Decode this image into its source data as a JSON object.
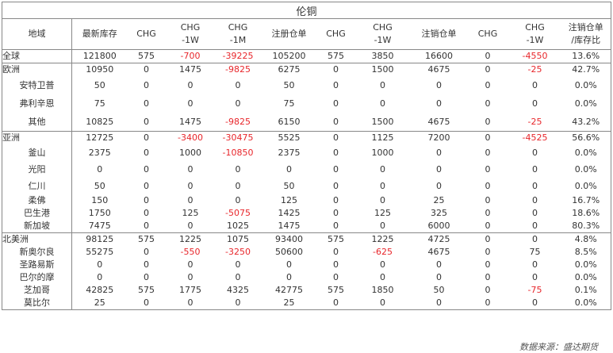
{
  "title": "伦铜",
  "headers": [
    "地域",
    "最新库存",
    "CHG",
    "CHG\n-1W",
    "CHG\n-1M",
    "注册仓单",
    "CHG",
    "CHG\n-1W",
    "注销仓单",
    "CHG",
    "CHG\n-1W",
    "注销仓单\n/库存比"
  ],
  "rows": [
    {
      "region": "全球",
      "level": 0,
      "cells": [
        "121800",
        "575",
        "-700",
        "-39225",
        "105200",
        "575",
        "3850",
        "16600",
        "0",
        "-4550",
        "13.6%"
      ],
      "red": [
        2,
        3,
        9
      ]
    },
    {
      "region": "欧洲",
      "level": 0,
      "cells": [
        "10950",
        "0",
        "1475",
        "-9825",
        "6275",
        "0",
        "1500",
        "4675",
        "0",
        "-25",
        "42.7%"
      ],
      "red": [
        3,
        9
      ]
    },
    {
      "region": "安特卫普",
      "level": 1,
      "cells": [
        "50",
        "0",
        "0",
        "0",
        "50",
        "0",
        "0",
        "0",
        "0",
        "0",
        "0.0%"
      ],
      "red": []
    },
    {
      "region": "弗利辛恩",
      "level": 1,
      "cells": [
        "75",
        "0",
        "0",
        "0",
        "75",
        "0",
        "0",
        "0",
        "0",
        "0",
        "0.0%"
      ],
      "red": []
    },
    {
      "region": "其他",
      "level": 1,
      "cells": [
        "10825",
        "0",
        "1475",
        "-9825",
        "6150",
        "0",
        "1500",
        "4675",
        "0",
        "-25",
        "43.2%"
      ],
      "red": [
        3,
        9
      ]
    },
    {
      "region": "亚洲",
      "level": 0,
      "cells": [
        "12725",
        "0",
        "-3400",
        "-30475",
        "5525",
        "0",
        "1125",
        "7200",
        "0",
        "-4525",
        "56.6%"
      ],
      "red": [
        2,
        3,
        9
      ]
    },
    {
      "region": "釜山",
      "level": 1,
      "cells": [
        "2375",
        "0",
        "1000",
        "-10850",
        "2375",
        "0",
        "1000",
        "0",
        "0",
        "0",
        "0.0%"
      ],
      "red": [
        3
      ]
    },
    {
      "region": "光阳",
      "level": 1,
      "cells": [
        "0",
        "0",
        "0",
        "0",
        "0",
        "0",
        "0",
        "0",
        "0",
        "0",
        "0.0%"
      ],
      "red": []
    },
    {
      "region": "仁川",
      "level": 1,
      "cells": [
        "50",
        "0",
        "0",
        "0",
        "50",
        "0",
        "0",
        "0",
        "0",
        "0",
        "0.0%"
      ],
      "red": []
    },
    {
      "region": "柔佛",
      "level": 1,
      "cells": [
        "150",
        "0",
        "0",
        "0",
        "125",
        "0",
        "0",
        "25",
        "0",
        "0",
        "16.7%"
      ],
      "red": []
    },
    {
      "region": "巴生港",
      "level": 1,
      "cells": [
        "1750",
        "0",
        "125",
        "-5075",
        "1425",
        "0",
        "125",
        "325",
        "0",
        "0",
        "18.6%"
      ],
      "red": [
        3
      ]
    },
    {
      "region": "新加坡",
      "level": 1,
      "cells": [
        "7475",
        "0",
        "0",
        "1025",
        "1475",
        "0",
        "0",
        "6000",
        "0",
        "0",
        "80.3%"
      ],
      "red": []
    },
    {
      "region": "北美洲",
      "level": 0,
      "cells": [
        "98125",
        "575",
        "1225",
        "1075",
        "93400",
        "575",
        "1225",
        "4725",
        "0",
        "0",
        "4.8%"
      ],
      "red": []
    },
    {
      "region": "新奥尔良",
      "level": 1,
      "cells": [
        "55275",
        "0",
        "-550",
        "-3250",
        "50600",
        "0",
        "-625",
        "4675",
        "0",
        "75",
        "8.5%"
      ],
      "red": [
        2,
        3,
        6
      ]
    },
    {
      "region": "圣路易斯",
      "level": 1,
      "cells": [
        "0",
        "0",
        "0",
        "0",
        "0",
        "0",
        "0",
        "0",
        "0",
        "0",
        "0.0%"
      ],
      "red": []
    },
    {
      "region": "巴尔的摩",
      "level": 1,
      "cells": [
        "0",
        "0",
        "0",
        "0",
        "0",
        "0",
        "0",
        "0",
        "0",
        "0",
        "0.0%"
      ],
      "red": []
    },
    {
      "region": "芝加哥",
      "level": 1,
      "cells": [
        "42825",
        "575",
        "1775",
        "4325",
        "42775",
        "575",
        "1850",
        "50",
        "0",
        "-75",
        "0.1%"
      ],
      "red": [
        9
      ]
    },
    {
      "region": "莫比尔",
      "level": 1,
      "cells": [
        "25",
        "0",
        "0",
        "0",
        "25",
        "0",
        "0",
        "0",
        "0",
        "0",
        "0.0%"
      ],
      "red": []
    }
  ],
  "source": "数据来源：盛达期货",
  "colors": {
    "negative": "#e8262b",
    "border": "#888888",
    "text": "#333333"
  }
}
